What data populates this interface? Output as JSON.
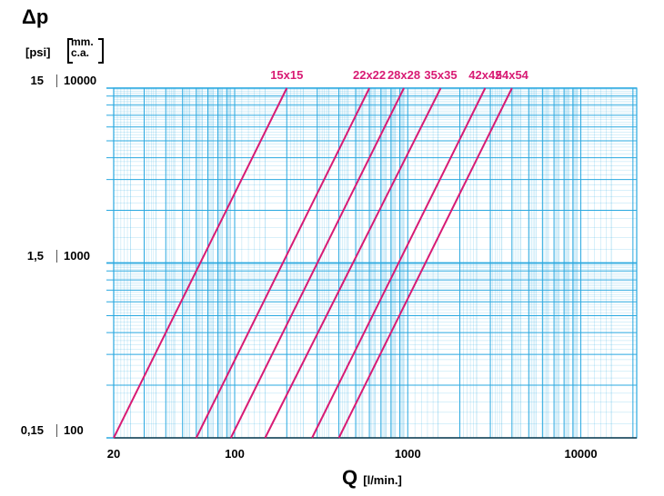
{
  "chart_data": {
    "type": "line",
    "x_scale": "log",
    "y_scale": "log",
    "xlim": [
      20,
      20000
    ],
    "ylim": [
      100,
      10000
    ],
    "xlabel": "Q",
    "xunit": "[l/min.]",
    "ylabel": "Δp",
    "y_units": [
      "[psi]",
      "mm.",
      "c.a."
    ],
    "x_ticks": [
      "20",
      "100",
      "1000",
      "10000"
    ],
    "y_ticks_psi": [
      "15",
      "1,5",
      "0,15"
    ],
    "y_ticks_mm": [
      "10000",
      "1000",
      "100"
    ],
    "grid": true,
    "grid_color": "#29a8e0",
    "line_color": "#d81b74",
    "series": [
      {
        "name": "15x15",
        "x": [
          20,
          200
        ],
        "y": [
          100,
          10000
        ]
      },
      {
        "name": "22x22",
        "x": [
          60,
          600
        ],
        "y": [
          100,
          10000
        ]
      },
      {
        "name": "28x28",
        "x": [
          95,
          950
        ],
        "y": [
          100,
          10000
        ]
      },
      {
        "name": "35x35",
        "x": [
          150,
          1550
        ],
        "y": [
          100,
          10000
        ]
      },
      {
        "name": "42x42",
        "x": [
          280,
          2800
        ],
        "y": [
          100,
          10000
        ]
      },
      {
        "name": "54x54",
        "x": [
          400,
          4000
        ],
        "y": [
          100,
          10000
        ]
      }
    ]
  }
}
